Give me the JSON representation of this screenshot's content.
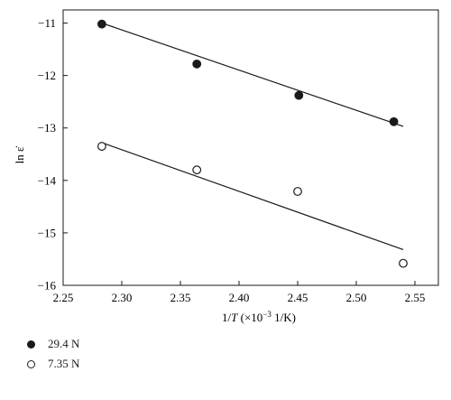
{
  "chart_data": {
    "type": "scatter",
    "xlabel_prefix": "1/",
    "xlabel_var": "T",
    "xlabel_suffix": " (×10",
    "xlabel_exp": "−3",
    "xlabel_end": " 1/K)",
    "ylabel": "ln ε̇",
    "xlim": [
      2.25,
      2.57
    ],
    "ylim": [
      -16,
      -10.75
    ],
    "x_ticks": [
      2.25,
      2.3,
      2.35,
      2.4,
      2.45,
      2.5,
      2.55
    ],
    "x_tick_labels": [
      "2.25",
      "2.30",
      "2.35",
      "2.40",
      "2.45",
      "2.50",
      "2.55"
    ],
    "y_ticks": [
      -11,
      -12,
      -13,
      -14,
      -15,
      -16
    ],
    "y_tick_labels": [
      "−11",
      "−12",
      "−13",
      "−14",
      "−15",
      "−16"
    ],
    "series": [
      {
        "name": "29.4 N",
        "marker": "filled",
        "x": [
          2.283,
          2.364,
          2.451,
          2.532
        ],
        "y": [
          -11.02,
          -11.78,
          -12.38,
          -12.88
        ],
        "fit": {
          "x": [
            2.283,
            2.54
          ],
          "y": [
            -11.0,
            -12.97
          ]
        }
      },
      {
        "name": "7.35 N",
        "marker": "open",
        "x": [
          2.283,
          2.364,
          2.45,
          2.54
        ],
        "y": [
          -13.35,
          -13.8,
          -14.21,
          -15.58
        ],
        "fit": {
          "x": [
            2.283,
            2.54
          ],
          "y": [
            -13.28,
            -15.32
          ]
        }
      }
    ],
    "grid": false,
    "legend_position": "bottom-left"
  },
  "colors": {
    "ink": "#1a1a1a",
    "background": "#ffffff"
  }
}
